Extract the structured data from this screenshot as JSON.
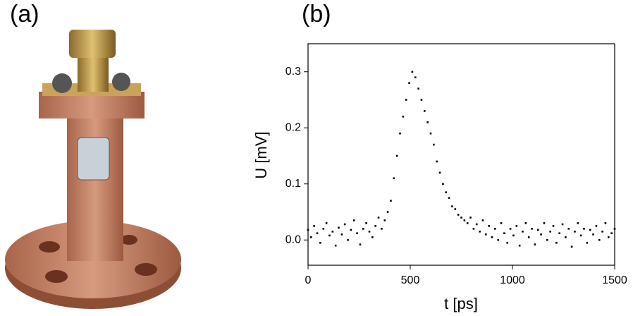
{
  "panel_a": {
    "label": "(a)"
  },
  "chart_data": {
    "type": "scatter",
    "panel_label": "(b)",
    "x_label": "t [ps]",
    "y_label": "U [mV]",
    "color": "#000000",
    "xlim": [
      0,
      1500
    ],
    "ylim": [
      -0.045,
      0.35
    ],
    "xticks": [
      0,
      500,
      1000,
      1500
    ],
    "yticks": [
      {
        "value": 0,
        "label": "0.0"
      },
      0.1,
      0.2,
      0.3
    ],
    "x": [
      0,
      15,
      30,
      45,
      60,
      75,
      90,
      105,
      120,
      135,
      150,
      165,
      180,
      195,
      210,
      225,
      240,
      255,
      270,
      285,
      300,
      315,
      330,
      345,
      360,
      375,
      390,
      405,
      420,
      435,
      450,
      465,
      480,
      495,
      510,
      525,
      540,
      555,
      570,
      585,
      600,
      615,
      630,
      645,
      660,
      675,
      690,
      705,
      720,
      735,
      750,
      765,
      780,
      795,
      810,
      825,
      840,
      855,
      870,
      885,
      900,
      915,
      930,
      945,
      960,
      975,
      990,
      1005,
      1020,
      1035,
      1050,
      1065,
      1080,
      1095,
      1110,
      1125,
      1140,
      1155,
      1170,
      1185,
      1200,
      1215,
      1230,
      1245,
      1260,
      1275,
      1290,
      1305,
      1320,
      1335,
      1350,
      1365,
      1380,
      1395,
      1410,
      1425,
      1440,
      1455,
      1470,
      1485,
      1500
    ],
    "values": [
      0.018,
      0.005,
      0.025,
      0.012,
      -0.005,
      0.02,
      0.03,
      0.008,
      0.015,
      -0.01,
      0.022,
      0.01,
      0.028,
      0.0,
      0.018,
      0.035,
      0.012,
      -0.008,
      0.02,
      0.03,
      0.015,
      0.005,
      0.025,
      0.04,
      0.02,
      0.035,
      0.05,
      0.07,
      0.11,
      0.15,
      0.19,
      0.22,
      0.25,
      0.28,
      0.3,
      0.29,
      0.27,
      0.25,
      0.23,
      0.21,
      0.19,
      0.17,
      0.14,
      0.12,
      0.1,
      0.085,
      0.075,
      0.06,
      0.055,
      0.045,
      0.04,
      0.035,
      0.03,
      0.04,
      0.02,
      0.028,
      0.015,
      0.035,
      0.01,
      0.025,
      0.005,
      0.02,
      0.0,
      0.03,
      0.012,
      -0.005,
      0.02,
      0.008,
      0.025,
      -0.01,
      0.015,
      0.03,
      0.005,
      0.02,
      -0.008,
      0.018,
      0.01,
      0.03,
      0.0,
      0.015,
      0.025,
      -0.005,
      0.012,
      0.028,
      0.005,
      0.02,
      -0.012,
      0.015,
      0.03,
      0.008,
      0.02,
      -0.005,
      0.018,
      0.01,
      0.025,
      0.0,
      0.015,
      0.03,
      0.005,
      0.012,
      0.02
    ]
  }
}
